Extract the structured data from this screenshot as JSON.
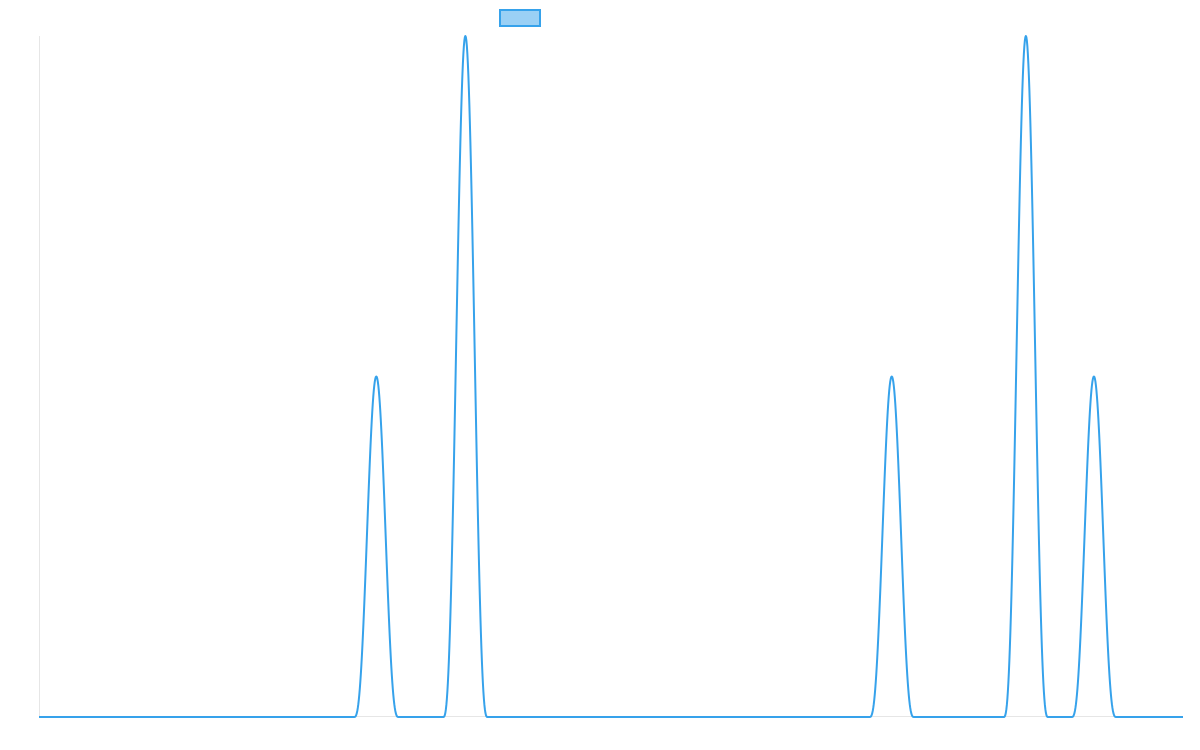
{
  "chart_data": {
    "type": "line",
    "title": "",
    "xlabel": "",
    "ylabel": "",
    "grid": false,
    "legend_position": "top-center",
    "series": [
      {
        "name": "",
        "color": "#36a2eb",
        "fill": "#9ad0f5",
        "peaks": [
          {
            "center": 376,
            "half_width": 22,
            "height": 0.5
          },
          {
            "center": 465,
            "half_width": 22,
            "height": 1.0
          },
          {
            "center": 891,
            "half_width": 22,
            "height": 0.5
          },
          {
            "center": 1025,
            "half_width": 22,
            "height": 1.0
          },
          {
            "center": 1093,
            "half_width": 22,
            "height": 0.5
          }
        ]
      }
    ],
    "xlim": [
      39,
      1182
    ],
    "ylim": [
      0,
      1
    ]
  }
}
